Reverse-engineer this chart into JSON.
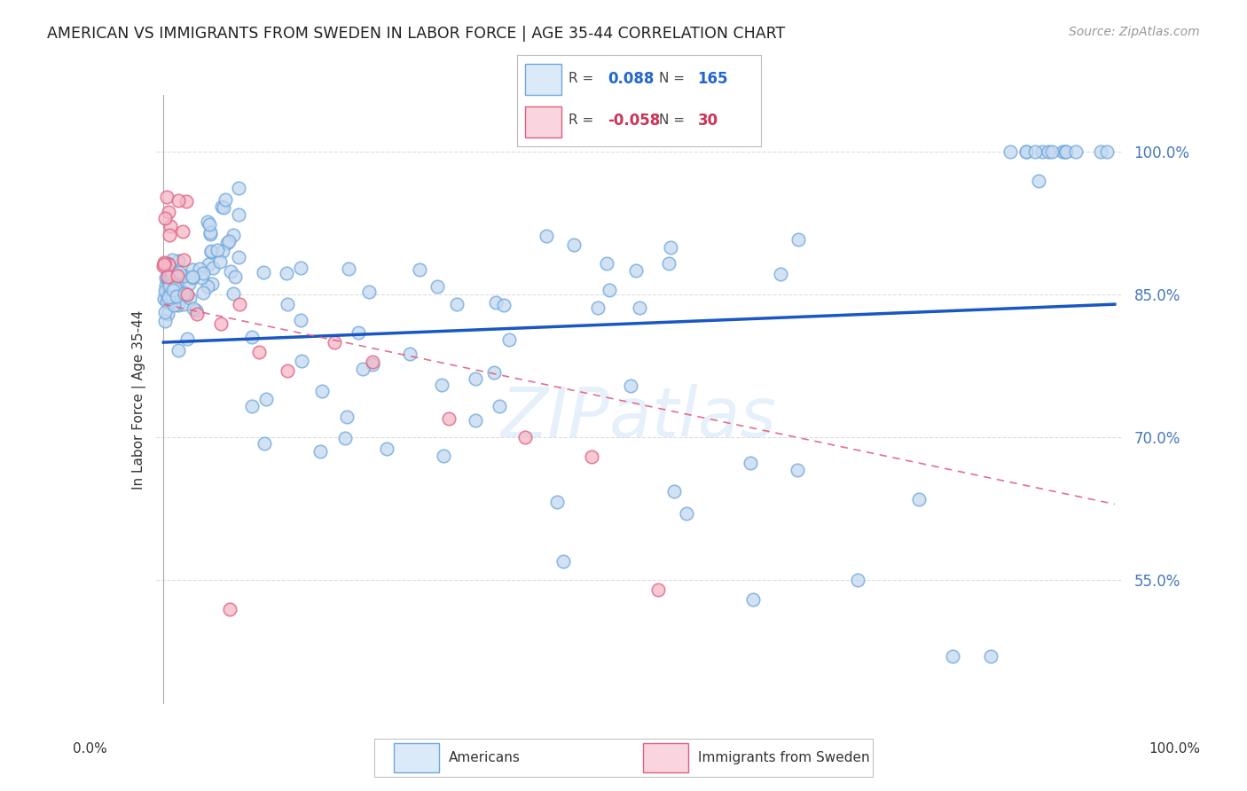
{
  "title": "AMERICAN VS IMMIGRANTS FROM SWEDEN IN LABOR FORCE | AGE 35-44 CORRELATION CHART",
  "source": "Source: ZipAtlas.com",
  "ylabel": "In Labor Force | Age 35-44",
  "ytick_values": [
    0.55,
    0.7,
    0.85,
    1.0
  ],
  "ytick_labels": [
    "55.0%",
    "70.0%",
    "85.0%",
    "100.0%"
  ],
  "xlim": [
    0.0,
    1.0
  ],
  "ylim": [
    0.42,
    1.06
  ],
  "americans_R": "0.088",
  "americans_N": "165",
  "immigrants_R": "-0.058",
  "immigrants_N": "30",
  "americans_fill": "#c5d9f0",
  "americans_edge": "#6fa8dc",
  "americans_line_color": "#1a56c4",
  "immigrants_fill": "#f4b8c8",
  "immigrants_edge": "#e06080",
  "immigrants_line_color": "#e06080",
  "watermark": "ZIPatlas",
  "legend_box_fill_am": "#daeaf8",
  "legend_box_edge_am": "#6fa8dc",
  "legend_box_fill_im": "#fad4de",
  "legend_box_edge_im": "#e06080",
  "blue_line_y0": 0.8,
  "blue_line_y1": 0.84,
  "pink_line_y0": 0.84,
  "pink_line_y1": 0.63,
  "grid_color": "#dddddd",
  "grid_style": "--",
  "title_fontsize": 12.5,
  "source_fontsize": 10,
  "ytick_fontsize": 12,
  "ylabel_fontsize": 11
}
